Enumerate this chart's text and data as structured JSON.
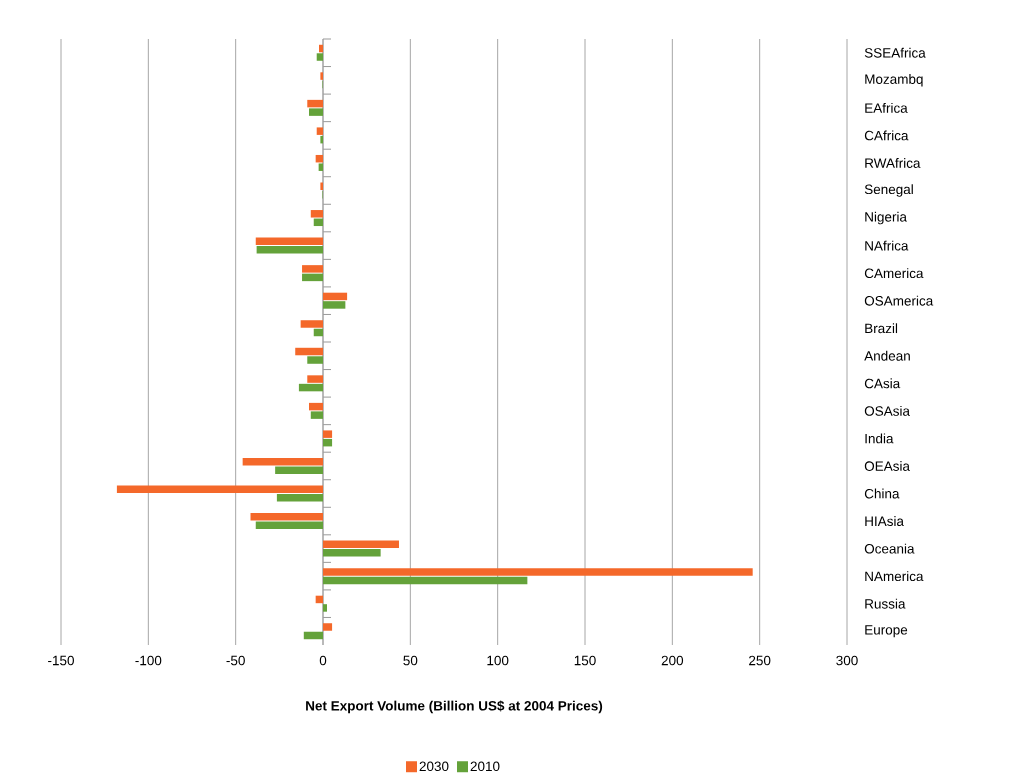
{
  "chart_data": {
    "type": "bar",
    "orientation": "horizontal",
    "xlabel": "Net Export Volume (Billion US$ at 2004 Prices)",
    "categories": [
      "SSEAfrica",
      "Mozambq",
      "EAfrica",
      "CAfrica",
      "RWAfrica",
      "Senegal",
      "Nigeria",
      "NAfrica",
      "CAmerica",
      "OSAmerica",
      "Brazil",
      "Andean",
      "CAsia",
      "OSAsia",
      "India",
      "OEAsia",
      "China",
      "HIAsia",
      "Oceania",
      "NAmerica",
      "Russia",
      "Europe"
    ],
    "series": [
      {
        "name": "2030",
        "color": "#f4682a",
        "values": [
          -2.3,
          -1.5,
          -9,
          -3.6,
          -4.2,
          -1.5,
          -7,
          -38.5,
          -12,
          13.8,
          -12.8,
          -15.9,
          -9,
          -8,
          5.2,
          -46,
          -118,
          -41.5,
          43.5,
          246,
          -4.2,
          5.2
        ]
      },
      {
        "name": "2010",
        "color": "#64a23a",
        "values": [
          -3.6,
          -0.3,
          -8,
          -1.5,
          -2.5,
          -0.3,
          -5.3,
          -38,
          -12,
          12.8,
          -5.3,
          -9,
          -13.8,
          -7,
          5.2,
          -27.4,
          -26.4,
          -38.5,
          33,
          117,
          2.3,
          -11
        ]
      }
    ],
    "xlim": [
      -150,
      300
    ],
    "xticks": [
      -150,
      -100,
      -50,
      0,
      50,
      100,
      150,
      200,
      250,
      300
    ],
    "grid": "x",
    "legend": "bottom"
  }
}
